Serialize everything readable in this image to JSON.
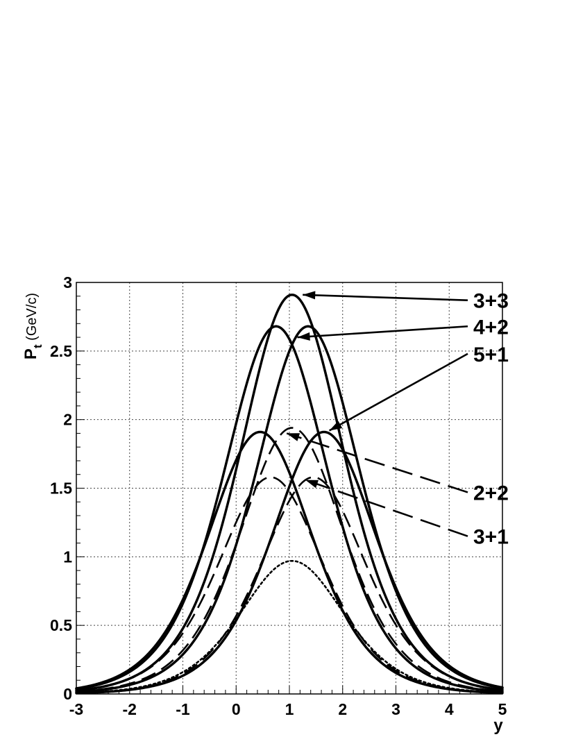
{
  "chart_data": {
    "type": "line",
    "title": "",
    "xlabel": "y",
    "ylabel": "P",
    "ylabel_sub": "t",
    "ylabel_unit": " (GeV/c)",
    "xlim": [
      -3,
      5
    ],
    "ylim": [
      0,
      3
    ],
    "grid": true,
    "x_ticks": [
      "-3",
      "-2",
      "-1",
      "0",
      "1",
      "2",
      "3",
      "4",
      "5"
    ],
    "y_ticks": [
      "0",
      "0.5",
      "1",
      "1.5",
      "2",
      "2.5",
      "3"
    ],
    "series": [
      {
        "name": "3+3",
        "style": "solid",
        "peak_x": 1.05,
        "peak_y": 2.91,
        "width": 1.32,
        "label_at": [
          5.0,
          2.87
        ],
        "arrow_to": [
          1.25,
          2.91
        ]
      },
      {
        "name": "4+2",
        "style": "solid",
        "peak_x": 0.75,
        "peak_y": 2.68,
        "width": 1.32
      },
      {
        "name": "4+2",
        "style": "solid",
        "peak_x": 1.35,
        "peak_y": 2.68,
        "width": 1.32,
        "label_at": [
          5.0,
          2.68
        ],
        "arrow_to": [
          1.15,
          2.6
        ]
      },
      {
        "name": "5+1",
        "style": "solid",
        "peak_x": 0.45,
        "peak_y": 1.91,
        "width": 1.32
      },
      {
        "name": "5+1",
        "style": "solid",
        "peak_x": 1.65,
        "peak_y": 1.91,
        "width": 1.32,
        "label_at": [
          5.0,
          2.48
        ],
        "arrow_to": [
          1.75,
          1.92
        ]
      },
      {
        "name": "2+2",
        "style": "dashed",
        "peak_x": 1.05,
        "peak_y": 1.94,
        "width": 1.32,
        "label_at": [
          5.0,
          1.47
        ],
        "arrow_to": [
          0.95,
          1.9
        ]
      },
      {
        "name": "3+1",
        "style": "dashed",
        "peak_x": 0.65,
        "peak_y": 1.58,
        "width": 1.32
      },
      {
        "name": "3+1",
        "style": "dashed",
        "peak_x": 1.45,
        "peak_y": 1.58,
        "width": 1.32,
        "label_at": [
          5.0,
          1.15
        ],
        "arrow_to": [
          1.3,
          1.56
        ]
      },
      {
        "name": "",
        "style": "dotted",
        "peak_x": 1.05,
        "peak_y": 0.97,
        "width": 1.32
      }
    ]
  }
}
